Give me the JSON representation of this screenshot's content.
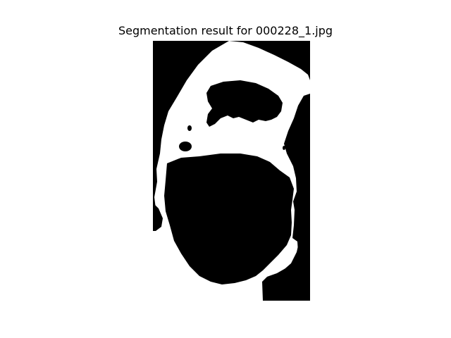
{
  "figure": {
    "title": "Segmentation result for 000228_1.jpg"
  },
  "mask": {
    "foreground_color": "#ffffff",
    "background_color": "#000000"
  }
}
